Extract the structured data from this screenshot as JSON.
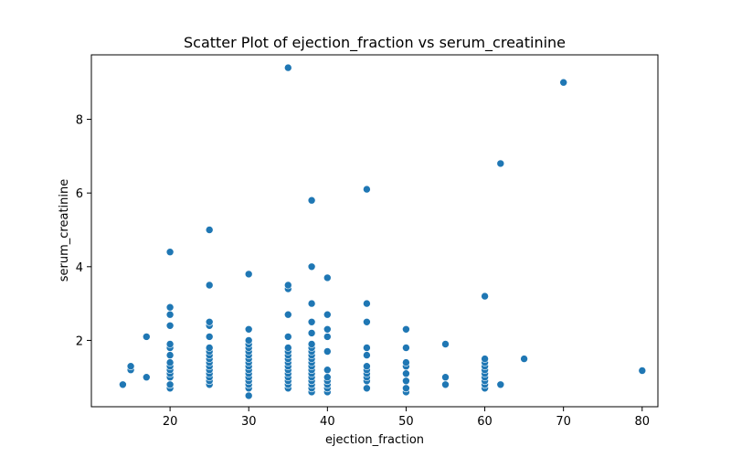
{
  "chart_data": {
    "type": "scatter",
    "title": "Scatter Plot of ejection_fraction vs serum_creatinine",
    "xlabel": "ejection_fraction",
    "ylabel": "serum_creatinine",
    "xlim": [
      10,
      82
    ],
    "ylim": [
      0.2,
      9.75
    ],
    "xticks": [
      20,
      30,
      40,
      50,
      60,
      70,
      80
    ],
    "yticks": [
      2,
      4,
      6,
      8
    ],
    "grid": false,
    "legend": "none",
    "color": "#1f77b4",
    "points": [
      {
        "x": 14,
        "y": 0.8
      },
      {
        "x": 15,
        "y": 1.2
      },
      {
        "x": 15,
        "y": 1.3
      },
      {
        "x": 17,
        "y": 1.0
      },
      {
        "x": 17,
        "y": 2.1
      },
      {
        "x": 20,
        "y": 0.7
      },
      {
        "x": 20,
        "y": 0.8
      },
      {
        "x": 20,
        "y": 1.0
      },
      {
        "x": 20,
        "y": 1.1
      },
      {
        "x": 20,
        "y": 1.2
      },
      {
        "x": 20,
        "y": 1.3
      },
      {
        "x": 20,
        "y": 1.4
      },
      {
        "x": 20,
        "y": 1.6
      },
      {
        "x": 20,
        "y": 1.8
      },
      {
        "x": 20,
        "y": 1.9
      },
      {
        "x": 20,
        "y": 2.4
      },
      {
        "x": 20,
        "y": 2.7
      },
      {
        "x": 20,
        "y": 2.9
      },
      {
        "x": 20,
        "y": 4.4
      },
      {
        "x": 25,
        "y": 0.8
      },
      {
        "x": 25,
        "y": 0.9
      },
      {
        "x": 25,
        "y": 1.0
      },
      {
        "x": 25,
        "y": 1.1
      },
      {
        "x": 25,
        "y": 1.2
      },
      {
        "x": 25,
        "y": 1.3
      },
      {
        "x": 25,
        "y": 1.4
      },
      {
        "x": 25,
        "y": 1.5
      },
      {
        "x": 25,
        "y": 1.6
      },
      {
        "x": 25,
        "y": 1.7
      },
      {
        "x": 25,
        "y": 1.8
      },
      {
        "x": 25,
        "y": 2.1
      },
      {
        "x": 25,
        "y": 2.4
      },
      {
        "x": 25,
        "y": 2.5
      },
      {
        "x": 25,
        "y": 3.5
      },
      {
        "x": 25,
        "y": 5.0
      },
      {
        "x": 30,
        "y": 0.5
      },
      {
        "x": 30,
        "y": 0.7
      },
      {
        "x": 30,
        "y": 0.8
      },
      {
        "x": 30,
        "y": 0.9
      },
      {
        "x": 30,
        "y": 1.0
      },
      {
        "x": 30,
        "y": 1.1
      },
      {
        "x": 30,
        "y": 1.2
      },
      {
        "x": 30,
        "y": 1.3
      },
      {
        "x": 30,
        "y": 1.4
      },
      {
        "x": 30,
        "y": 1.5
      },
      {
        "x": 30,
        "y": 1.6
      },
      {
        "x": 30,
        "y": 1.7
      },
      {
        "x": 30,
        "y": 1.8
      },
      {
        "x": 30,
        "y": 1.9
      },
      {
        "x": 30,
        "y": 2.0
      },
      {
        "x": 30,
        "y": 2.3
      },
      {
        "x": 30,
        "y": 3.8
      },
      {
        "x": 35,
        "y": 0.7
      },
      {
        "x": 35,
        "y": 0.8
      },
      {
        "x": 35,
        "y": 0.9
      },
      {
        "x": 35,
        "y": 1.0
      },
      {
        "x": 35,
        "y": 1.1
      },
      {
        "x": 35,
        "y": 1.2
      },
      {
        "x": 35,
        "y": 1.3
      },
      {
        "x": 35,
        "y": 1.4
      },
      {
        "x": 35,
        "y": 1.5
      },
      {
        "x": 35,
        "y": 1.6
      },
      {
        "x": 35,
        "y": 1.7
      },
      {
        "x": 35,
        "y": 1.8
      },
      {
        "x": 35,
        "y": 2.1
      },
      {
        "x": 35,
        "y": 2.7
      },
      {
        "x": 35,
        "y": 3.4
      },
      {
        "x": 35,
        "y": 3.5
      },
      {
        "x": 35,
        "y": 9.4
      },
      {
        "x": 38,
        "y": 0.6
      },
      {
        "x": 38,
        "y": 0.7
      },
      {
        "x": 38,
        "y": 0.8
      },
      {
        "x": 38,
        "y": 0.9
      },
      {
        "x": 38,
        "y": 1.0
      },
      {
        "x": 38,
        "y": 1.1
      },
      {
        "x": 38,
        "y": 1.2
      },
      {
        "x": 38,
        "y": 1.3
      },
      {
        "x": 38,
        "y": 1.4
      },
      {
        "x": 38,
        "y": 1.5
      },
      {
        "x": 38,
        "y": 1.6
      },
      {
        "x": 38,
        "y": 1.7
      },
      {
        "x": 38,
        "y": 1.8
      },
      {
        "x": 38,
        "y": 1.9
      },
      {
        "x": 38,
        "y": 2.2
      },
      {
        "x": 38,
        "y": 2.5
      },
      {
        "x": 38,
        "y": 3.0
      },
      {
        "x": 38,
        "y": 4.0
      },
      {
        "x": 38,
        "y": 5.8
      },
      {
        "x": 40,
        "y": 0.6
      },
      {
        "x": 40,
        "y": 0.7
      },
      {
        "x": 40,
        "y": 0.8
      },
      {
        "x": 40,
        "y": 0.9
      },
      {
        "x": 40,
        "y": 1.0
      },
      {
        "x": 40,
        "y": 1.2
      },
      {
        "x": 40,
        "y": 1.7
      },
      {
        "x": 40,
        "y": 2.1
      },
      {
        "x": 40,
        "y": 2.3
      },
      {
        "x": 40,
        "y": 2.7
      },
      {
        "x": 40,
        "y": 3.7
      },
      {
        "x": 45,
        "y": 0.7
      },
      {
        "x": 45,
        "y": 0.9
      },
      {
        "x": 45,
        "y": 1.0
      },
      {
        "x": 45,
        "y": 1.1
      },
      {
        "x": 45,
        "y": 1.2
      },
      {
        "x": 45,
        "y": 1.3
      },
      {
        "x": 45,
        "y": 1.6
      },
      {
        "x": 45,
        "y": 1.8
      },
      {
        "x": 45,
        "y": 2.5
      },
      {
        "x": 45,
        "y": 3.0
      },
      {
        "x": 45,
        "y": 6.1
      },
      {
        "x": 50,
        "y": 0.6
      },
      {
        "x": 50,
        "y": 0.7
      },
      {
        "x": 50,
        "y": 0.9
      },
      {
        "x": 50,
        "y": 1.1
      },
      {
        "x": 50,
        "y": 1.3
      },
      {
        "x": 50,
        "y": 1.4
      },
      {
        "x": 50,
        "y": 1.8
      },
      {
        "x": 50,
        "y": 2.3
      },
      {
        "x": 55,
        "y": 0.8
      },
      {
        "x": 55,
        "y": 1.0
      },
      {
        "x": 55,
        "y": 1.9
      },
      {
        "x": 60,
        "y": 0.7
      },
      {
        "x": 60,
        "y": 0.8
      },
      {
        "x": 60,
        "y": 0.9
      },
      {
        "x": 60,
        "y": 1.0
      },
      {
        "x": 60,
        "y": 1.1
      },
      {
        "x": 60,
        "y": 1.2
      },
      {
        "x": 60,
        "y": 1.3
      },
      {
        "x": 60,
        "y": 1.4
      },
      {
        "x": 60,
        "y": 1.5
      },
      {
        "x": 60,
        "y": 3.2
      },
      {
        "x": 62,
        "y": 0.8
      },
      {
        "x": 62,
        "y": 6.8
      },
      {
        "x": 65,
        "y": 1.5
      },
      {
        "x": 70,
        "y": 9.0
      },
      {
        "x": 80,
        "y": 1.18
      }
    ]
  }
}
